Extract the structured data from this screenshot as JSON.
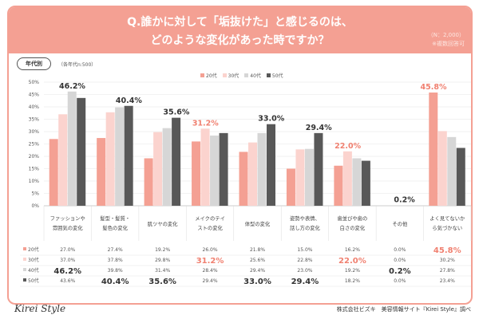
{
  "header": {
    "title_line1": "Q.誰かに対して「垢抜けた」と感じるのは、",
    "title_line2": "どのような変化があった時ですか？",
    "n": "（N：2,000）",
    "note": "※複数回答可"
  },
  "filter": {
    "tag": "年代別",
    "sub": "（各年代n:500）"
  },
  "footer": {
    "logo": "Kirei Style",
    "source": "株式会社ビズキ　美容情報サイト『Kirei Style』調べ"
  },
  "chart_data": {
    "type": "bar",
    "categories": [
      "ファッションや雰囲気の変化",
      "髪型・髪質・髪色の変化",
      "肌ツヤの変化",
      "メイクのテイストの変化",
      "体型の変化",
      "姿勢や表情、話し方の変化",
      "歯並びや歯の白さの変化",
      "その他",
      "よく見てないから気づかない"
    ],
    "series": [
      {
        "name": "20代",
        "color": "#f4a093",
        "values": [
          27.0,
          27.4,
          19.2,
          26.0,
          21.8,
          15.0,
          16.2,
          0.0,
          45.8
        ]
      },
      {
        "name": "30代",
        "color": "#fbd3ce",
        "values": [
          37.0,
          37.8,
          29.8,
          31.2,
          25.6,
          22.8,
          22.0,
          0.0,
          30.2
        ]
      },
      {
        "name": "40代",
        "color": "#d6d6d6",
        "values": [
          46.2,
          39.8,
          31.4,
          28.4,
          29.4,
          23.0,
          19.2,
          0.2,
          27.8
        ]
      },
      {
        "name": "50代",
        "color": "#585858",
        "values": [
          43.6,
          40.4,
          35.6,
          29.4,
          33.0,
          29.4,
          18.2,
          0.0,
          23.4
        ]
      }
    ],
    "yticks": [
      "0%",
      "5%",
      "10%",
      "15%",
      "20%",
      "25%",
      "30%",
      "35%",
      "40%",
      "45%",
      "50%"
    ],
    "ylim": [
      0,
      50
    ],
    "grid": true,
    "legend": "top-center",
    "highlight_color": "#f08070"
  }
}
